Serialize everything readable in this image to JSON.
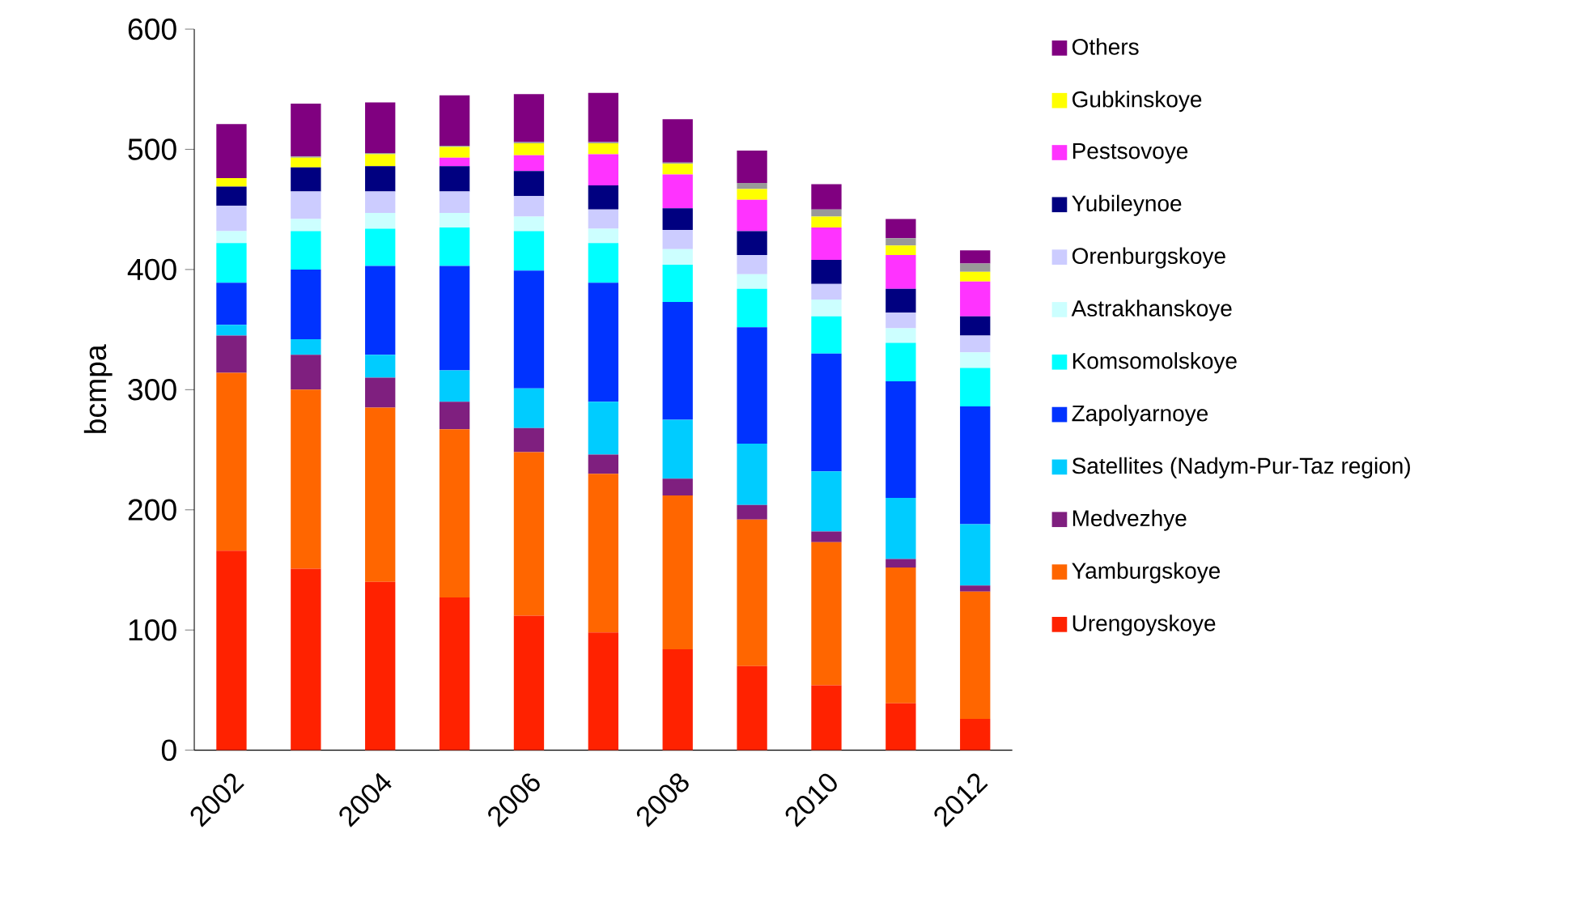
{
  "chart_data": {
    "type": "bar",
    "stacked": true,
    "ylabel": "bcmpa",
    "categories": [
      "2002",
      null,
      "2004",
      null,
      "2006",
      null,
      "2008",
      null,
      "2010",
      null,
      "2012"
    ],
    "ylim": [
      0,
      600
    ],
    "yticks": [
      0,
      100,
      200,
      300,
      400,
      500,
      600
    ],
    "legend": "right",
    "series": [
      {
        "name": "Urengoyskoye",
        "color": "#ff2200",
        "values": [
          166,
          151,
          140,
          127,
          112,
          98,
          84,
          70,
          54,
          39,
          26
        ]
      },
      {
        "name": "Yamburgskoye",
        "color": "#ff6600",
        "values": [
          148,
          149,
          145,
          140,
          136,
          132,
          128,
          122,
          119,
          113,
          106
        ]
      },
      {
        "name": "Medvezhye",
        "color": "#7f1f7f",
        "values": [
          31,
          29,
          25,
          23,
          20,
          16,
          14,
          12,
          9,
          7,
          5
        ]
      },
      {
        "name": "Satellites (Nadym-Pur-Taz region)",
        "color": "#00ccff",
        "values": [
          9,
          13,
          19,
          26,
          33,
          44,
          49,
          51,
          50,
          51,
          51
        ]
      },
      {
        "name": "Zapolyarnoye",
        "color": "#0033ff",
        "values": [
          35,
          58,
          74,
          87,
          98,
          99,
          98,
          97,
          98,
          97,
          98
        ]
      },
      {
        "name": "Komsomolskoye",
        "color": "#00ffff",
        "values": [
          33,
          32,
          31,
          32,
          33,
          33,
          31,
          32,
          31,
          32,
          32
        ]
      },
      {
        "name": "Astrakhanskoye",
        "color": "#ccffff",
        "values": [
          10,
          10,
          13,
          12,
          12,
          12,
          13,
          12,
          14,
          12,
          13
        ]
      },
      {
        "name": "Orenburgskoye",
        "color": "#ccccff",
        "values": [
          21,
          23,
          18,
          18,
          17,
          16,
          16,
          16,
          13,
          13,
          14
        ]
      },
      {
        "name": "Yubileynoe",
        "color": "#000080",
        "values": [
          16,
          20,
          21,
          21,
          21,
          20,
          18,
          20,
          20,
          20,
          16
        ]
      },
      {
        "name": "Pestsovoye",
        "color": "#ff33ff",
        "values": [
          0,
          0,
          0,
          7,
          13,
          26,
          28,
          26,
          27,
          28,
          29
        ]
      },
      {
        "name": "Gubkinskoye",
        "color": "#ffff00",
        "values": [
          7,
          8,
          10,
          9,
          10,
          9,
          9,
          9,
          9,
          8,
          8
        ]
      },
      {
        "color": "#999999",
        "values": [
          0,
          1,
          1,
          1,
          1,
          1,
          1,
          5,
          6,
          6,
          7
        ]
      },
      {
        "name": "Others",
        "color": "#800080",
        "values": [
          45,
          44,
          42,
          42,
          40,
          41,
          36,
          27,
          21,
          16,
          11
        ]
      }
    ]
  }
}
